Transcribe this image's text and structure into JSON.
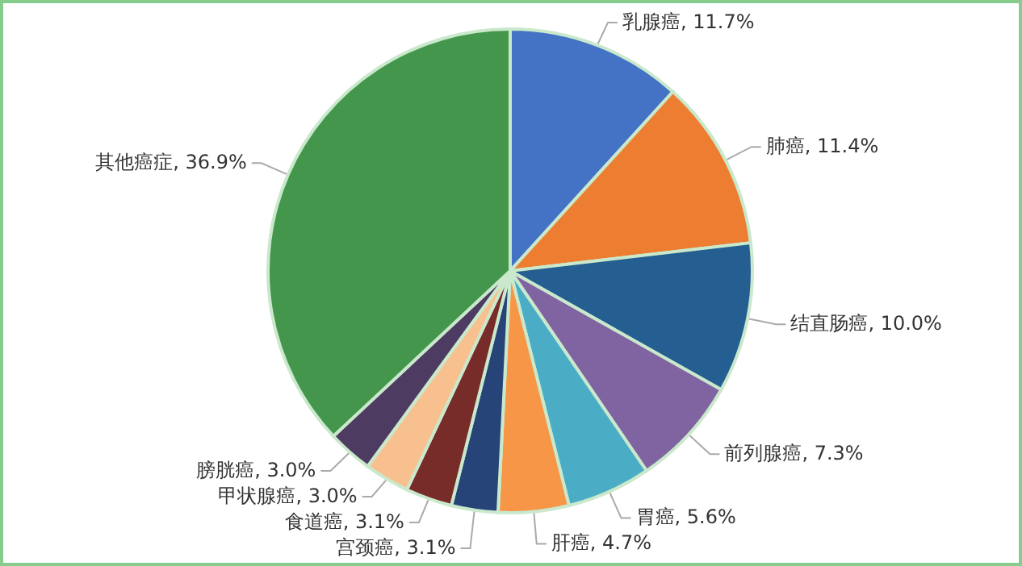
{
  "chart_data": {
    "type": "pie",
    "categories": [
      "乳腺癌",
      "肺癌",
      "结直肠癌",
      "前列腺癌",
      "胃癌",
      "肝癌",
      "宫颈癌",
      "食道癌",
      "甲状腺癌",
      "膀胱癌",
      "其他癌症"
    ],
    "values": [
      11.7,
      11.4,
      10.0,
      7.3,
      5.6,
      4.7,
      3.1,
      3.1,
      3.0,
      3.0,
      36.9
    ],
    "value_labels": [
      "11.7%",
      "11.4%",
      "10.0%",
      "7.3%",
      "5.6%",
      "4.7%",
      "3.1%",
      "3.1%",
      "3.0%",
      "3.0%",
      "36.9%"
    ],
    "colors": [
      "#4472c4",
      "#ed7d31",
      "#255e91",
      "#8064a2",
      "#4bacc6",
      "#f79646",
      "#264478",
      "#772c2a",
      "#f9c08f",
      "#4d3b62",
      "#43964b"
    ]
  }
}
